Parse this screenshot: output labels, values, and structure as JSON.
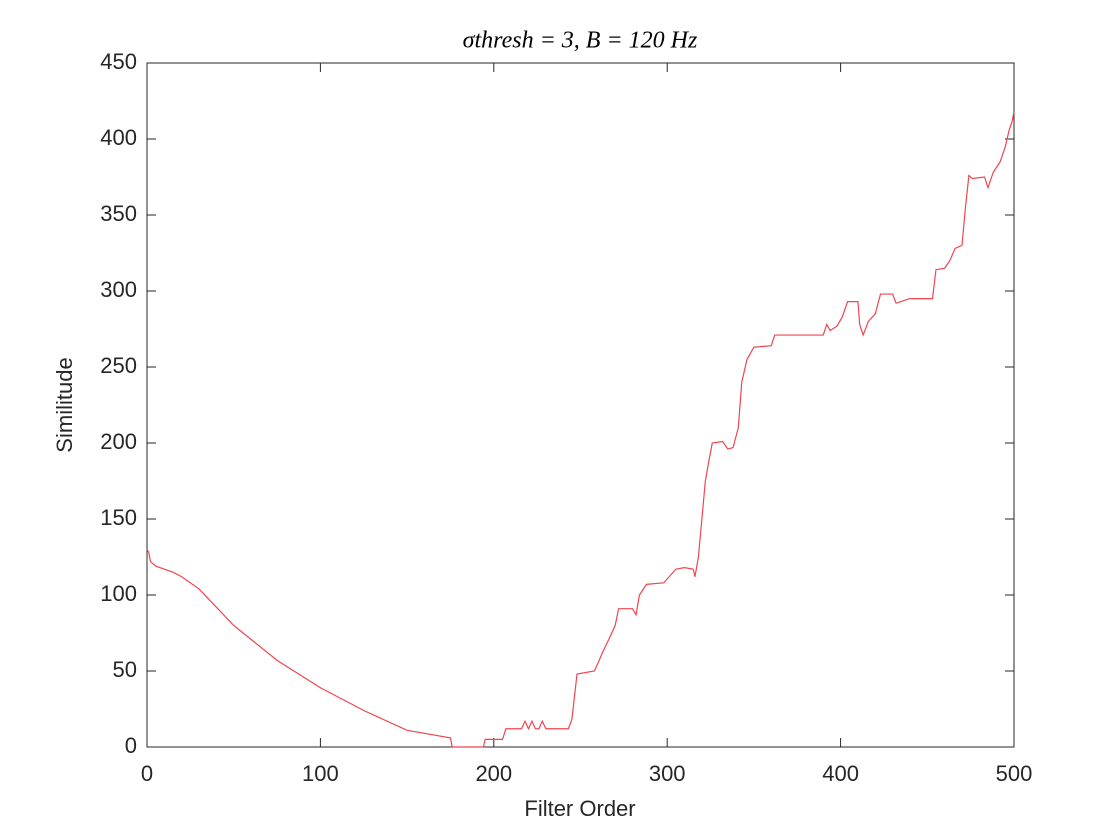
{
  "chart_data": {
    "type": "line",
    "title": "σthresh = 3,  B = 120 Hz",
    "x_label": "Filter Order",
    "y_label": "Similitude",
    "xlim": [
      0,
      500
    ],
    "xticks": [
      0,
      100,
      200,
      300,
      400,
      500
    ],
    "ylim": [
      0,
      450
    ],
    "yticks": [
      0,
      50,
      100,
      150,
      200,
      250,
      300,
      350,
      400,
      450
    ],
    "grid": false,
    "series": [
      {
        "color": "#f0454f",
        "x": [
          0,
          1,
          2,
          5,
          10,
          15,
          20,
          30,
          50,
          75,
          100,
          125,
          150,
          175,
          176,
          194,
          195,
          205,
          207,
          216,
          218,
          220,
          222,
          224,
          226,
          228,
          230,
          243,
          245,
          248,
          258,
          260,
          263,
          266,
          270,
          272,
          280,
          282,
          284,
          288,
          298,
          305,
          310,
          315,
          316,
          318,
          320,
          322,
          324,
          326,
          332,
          335,
          338,
          341,
          343,
          346,
          350,
          360,
          362,
          390,
          392,
          394,
          398,
          401,
          404,
          410,
          411,
          413,
          416,
          420,
          423,
          430,
          432,
          440,
          453,
          455,
          460,
          463,
          466,
          470,
          472,
          474,
          476,
          483,
          485,
          488,
          492,
          495,
          497,
          499,
          500
        ],
        "values": [
          130,
          128,
          122,
          119,
          117,
          115,
          112,
          104,
          80,
          57,
          39,
          24,
          11,
          6,
          0,
          0,
          5,
          5,
          12,
          12,
          17,
          12,
          17,
          12,
          12,
          17,
          12,
          12,
          18,
          48,
          50,
          55,
          63,
          70,
          80,
          91,
          91,
          87,
          100,
          107,
          108,
          117,
          118,
          117,
          112,
          125,
          150,
          175,
          188,
          200,
          201,
          196,
          197,
          210,
          240,
          255,
          263,
          264,
          271,
          271,
          278,
          274,
          277,
          283,
          293,
          293,
          278,
          271,
          280,
          285,
          298,
          298,
          292,
          295,
          295,
          314,
          315,
          320,
          328,
          330,
          355,
          376,
          374,
          375,
          368,
          378,
          385,
          395,
          405,
          412,
          418
        ]
      }
    ]
  }
}
